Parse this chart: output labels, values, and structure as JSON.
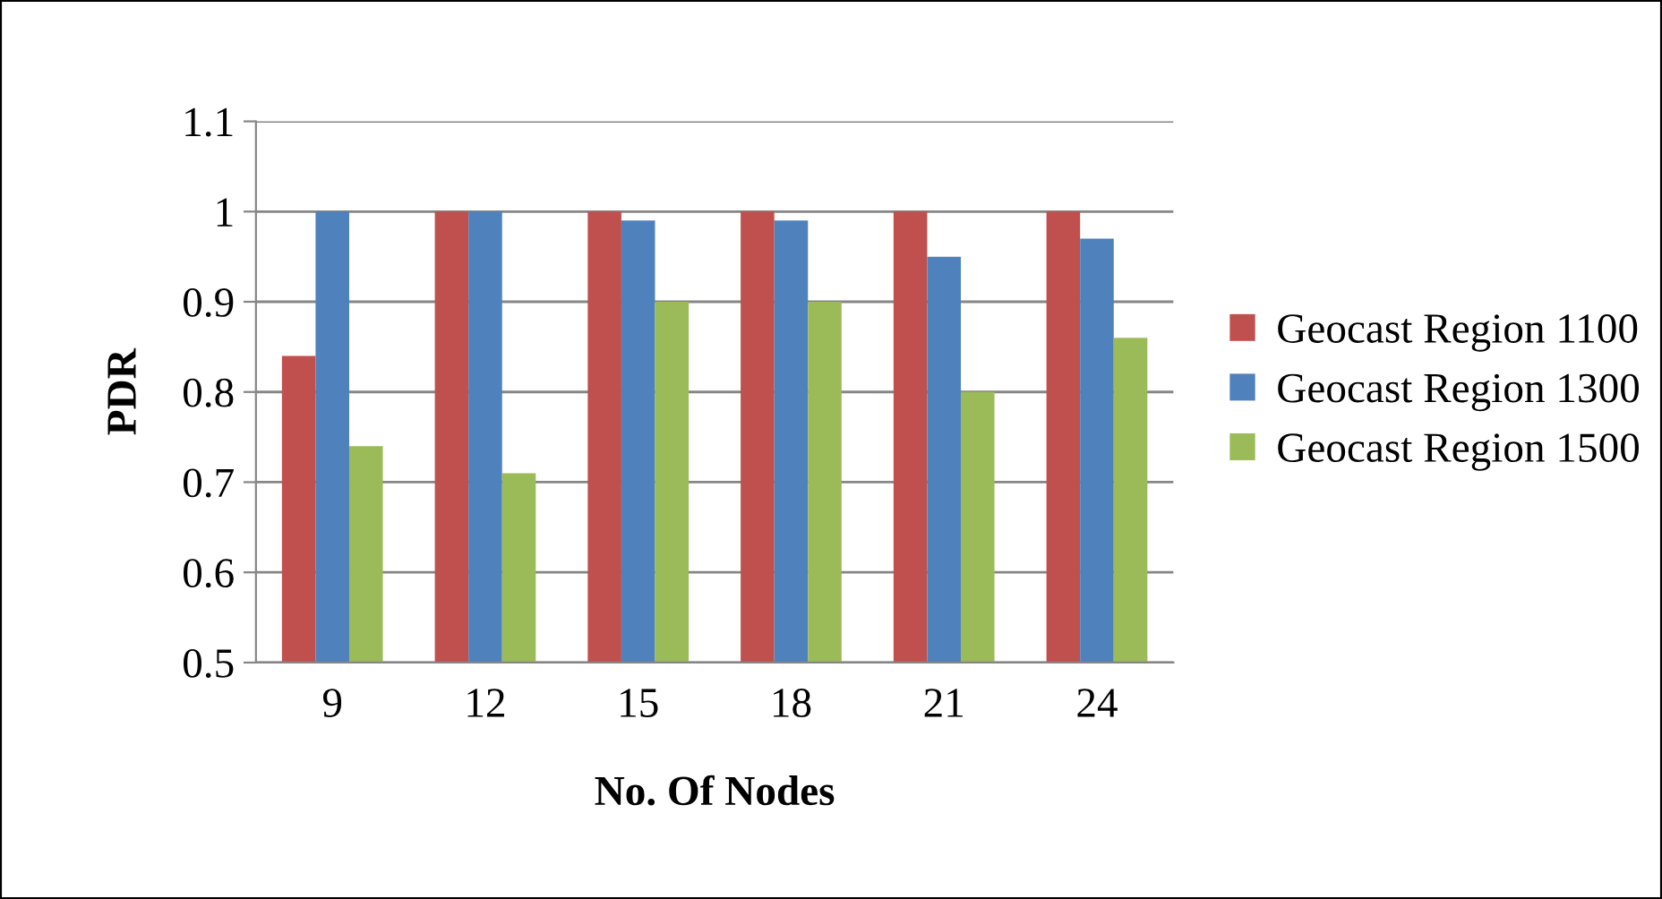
{
  "chart_data": {
    "type": "bar",
    "xlabel": "No. Of Nodes",
    "ylabel": "PDR",
    "categories": [
      "9",
      "12",
      "15",
      "18",
      "21",
      "24"
    ],
    "series": [
      {
        "name": "Geocast Region 1100",
        "color": "#c0504d",
        "values": [
          0.84,
          1.0,
          1.0,
          1.0,
          1.0,
          1.0
        ]
      },
      {
        "name": "Geocast Region 1300",
        "color": "#4f81bd",
        "values": [
          1.0,
          1.0,
          0.99,
          0.99,
          0.95,
          0.97
        ]
      },
      {
        "name": "Geocast Region 1500",
        "color": "#9bbb59",
        "values": [
          0.74,
          0.71,
          0.9,
          0.9,
          0.8,
          0.86
        ]
      }
    ],
    "ylim": [
      0.5,
      1.1
    ],
    "yticks": [
      0.5,
      0.6,
      0.7,
      0.8,
      0.9,
      1,
      1.1
    ],
    "grid": "y",
    "legend": "right"
  }
}
